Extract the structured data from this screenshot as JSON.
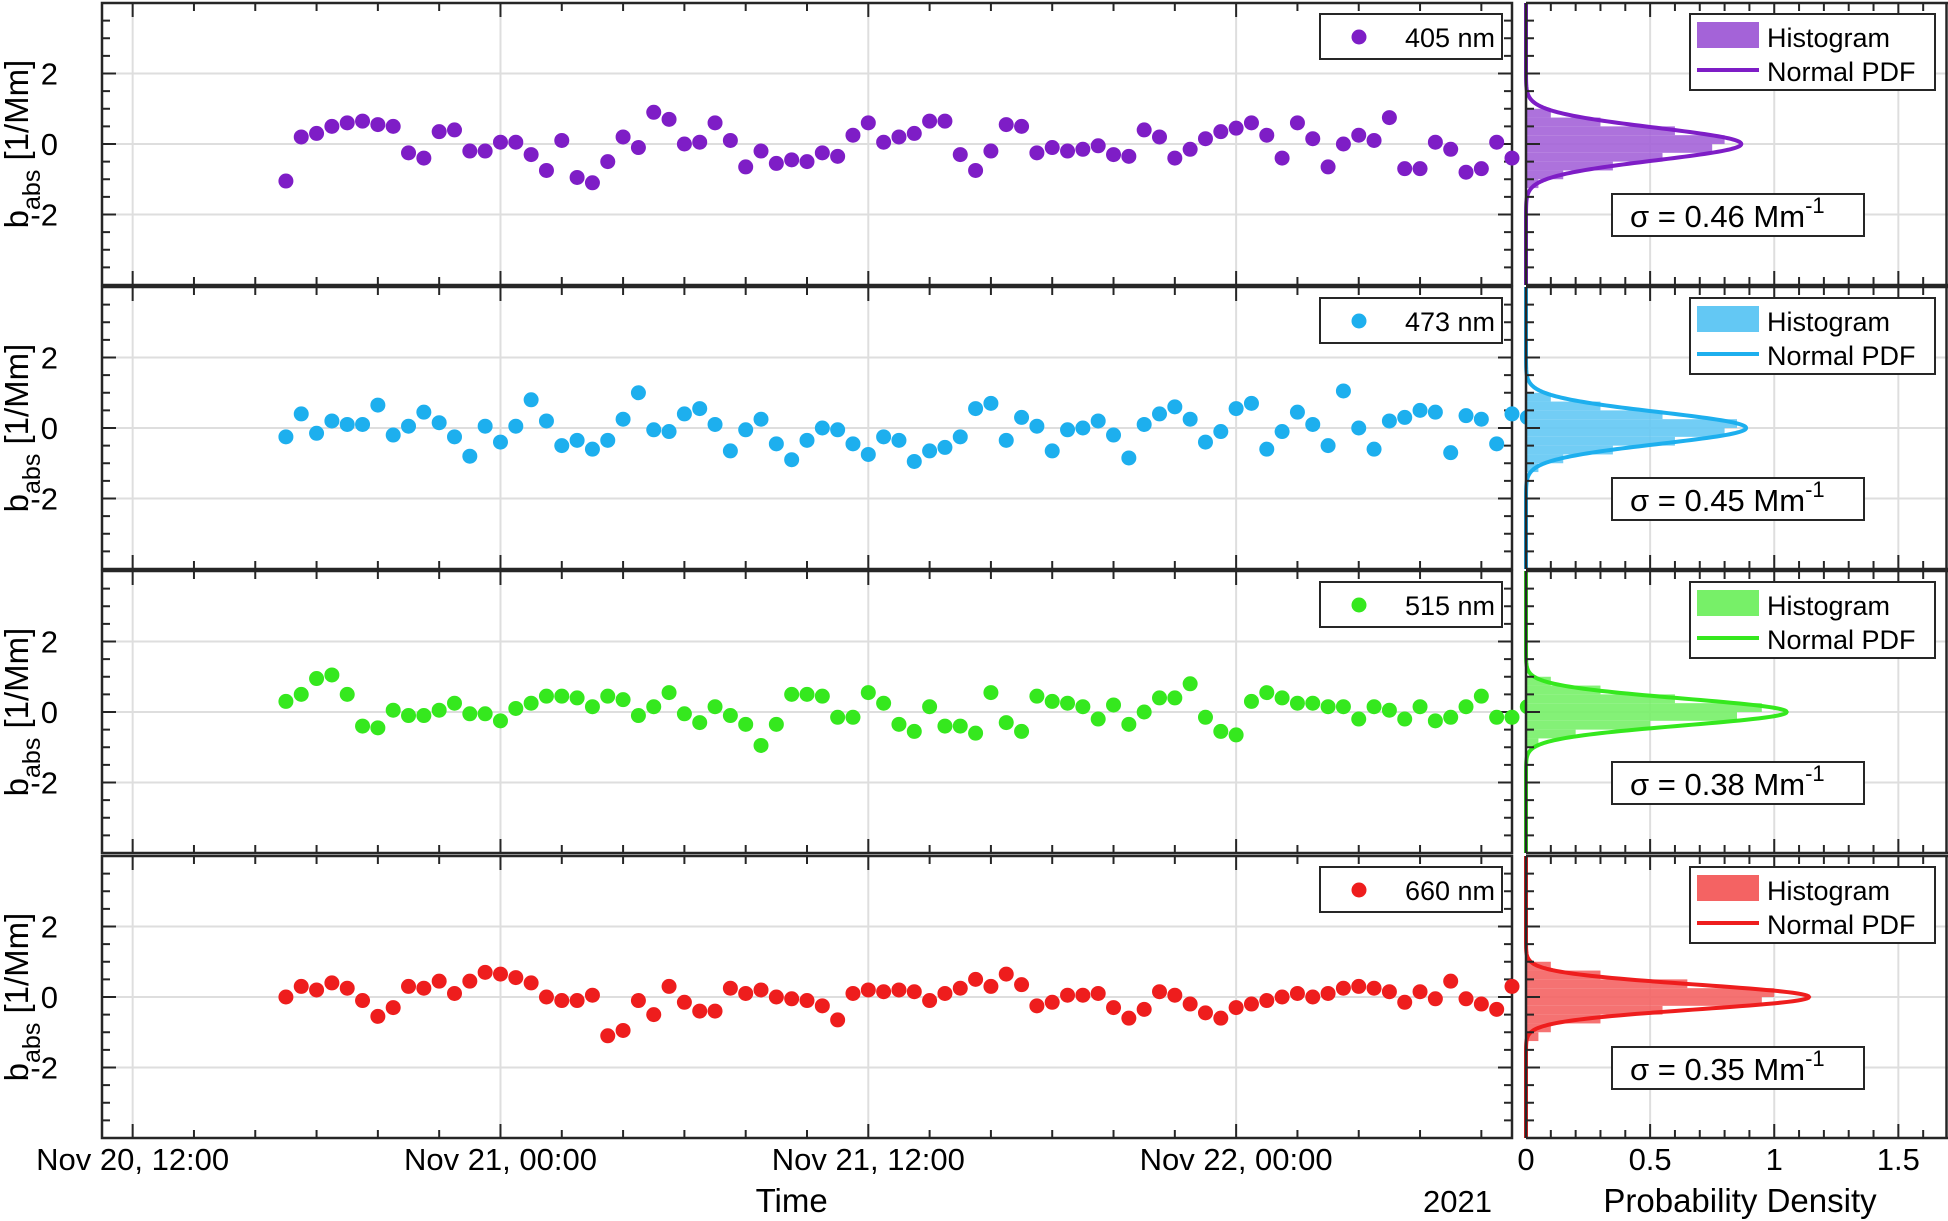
{
  "chart_data": {
    "type": "scatter",
    "x_axis": {
      "label": "Time",
      "tick_labels": [
        "Nov 20, 12:00",
        "Nov 21, 00:00",
        "Nov 21, 12:00",
        "Nov 22, 00:00"
      ],
      "year_label": "2021",
      "range_hours": [
        -1,
        45
      ]
    },
    "y_axis": {
      "label_main": "b",
      "label_sub": "abs",
      "label_unit": " [1/Mm]",
      "tick_labels": [
        "2",
        "0",
        "-2"
      ],
      "ylim": [
        -4,
        4
      ]
    },
    "hist_x_axis": {
      "label": "Probability Density",
      "tick_labels": [
        "0",
        "0.5",
        "1",
        "1.5"
      ],
      "xlim": [
        0,
        1.7
      ]
    },
    "legend_labels": {
      "histogram": "Histogram",
      "pdf": "Normal PDF"
    },
    "grid": true,
    "panels": [
      {
        "name": "405 nm",
        "color": "#7E1DC6",
        "hist_fill": "#A463D8",
        "sigma": 0.46,
        "sigma_label": "σ = 0.46 Mm",
        "sigma_sup": "-1",
        "x_start": 5,
        "x_step": 0.5,
        "values": [
          -1.05,
          0.2,
          0.3,
          0.5,
          0.6,
          0.65,
          0.55,
          0.5,
          -0.25,
          -0.4,
          0.35,
          0.4,
          -0.2,
          -0.2,
          0.05,
          0.05,
          -0.3,
          -0.75,
          0.1,
          -0.95,
          -1.1,
          -0.5,
          0.2,
          -0.1,
          0.9,
          0.7,
          0.0,
          0.05,
          0.6,
          0.1,
          -0.65,
          -0.2,
          -0.55,
          -0.45,
          -0.5,
          -0.25,
          -0.35,
          0.25,
          0.6,
          0.05,
          0.2,
          0.3,
          0.65,
          0.65,
          -0.3,
          -0.75,
          -0.2,
          0.55,
          0.5,
          -0.25,
          -0.1,
          -0.2,
          -0.15,
          -0.05,
          -0.3,
          -0.35,
          0.4,
          0.2,
          -0.4,
          -0.15,
          0.15,
          0.35,
          0.45,
          0.6,
          0.25,
          -0.4,
          0.6,
          0.15,
          -0.65,
          0.0,
          0.25,
          0.1,
          0.75,
          -0.7,
          -0.7,
          0.05,
          -0.15,
          -0.8,
          -0.7,
          0.05,
          -0.4
        ],
        "hist_bins": [
          [
            -1.25,
            -1.0,
            0.05
          ],
          [
            -1.0,
            -0.75,
            0.15
          ],
          [
            -0.75,
            -0.5,
            0.35
          ],
          [
            -0.5,
            -0.25,
            0.55
          ],
          [
            -0.25,
            0.0,
            0.75
          ],
          [
            0.0,
            0.25,
            0.8
          ],
          [
            0.25,
            0.5,
            0.6
          ],
          [
            0.5,
            0.75,
            0.3
          ],
          [
            0.75,
            1.0,
            0.1
          ]
        ]
      },
      {
        "name": "473 nm",
        "color": "#1DAFEE",
        "hist_fill": "#63C8F4",
        "sigma": 0.45,
        "sigma_label": "σ = 0.45 Mm",
        "sigma_sup": "-1",
        "x_start": 5,
        "x_step": 0.5,
        "values": [
          -0.25,
          0.4,
          -0.15,
          0.2,
          0.1,
          0.1,
          0.65,
          -0.2,
          0.05,
          0.45,
          0.15,
          -0.25,
          -0.8,
          0.05,
          -0.4,
          0.05,
          0.8,
          0.2,
          -0.5,
          -0.35,
          -0.6,
          -0.35,
          0.25,
          1.0,
          -0.05,
          -0.1,
          0.4,
          0.55,
          0.1,
          -0.65,
          -0.05,
          0.25,
          -0.45,
          -0.9,
          -0.35,
          0.0,
          -0.05,
          -0.45,
          -0.75,
          -0.25,
          -0.35,
          -0.95,
          -0.65,
          -0.55,
          -0.25,
          0.55,
          0.7,
          -0.35,
          0.3,
          0.05,
          -0.65,
          -0.05,
          0.0,
          0.2,
          -0.2,
          -0.85,
          0.1,
          0.4,
          0.6,
          0.25,
          -0.4,
          -0.1,
          0.55,
          0.7,
          -0.6,
          -0.1,
          0.45,
          0.1,
          -0.5,
          1.05,
          0.0,
          -0.6,
          0.2,
          0.3,
          0.5,
          0.45,
          -0.7,
          0.35,
          0.25,
          -0.45,
          0.4,
          0.3
        ],
        "hist_bins": [
          [
            -1.25,
            -1.0,
            0.05
          ],
          [
            -1.0,
            -0.75,
            0.15
          ],
          [
            -0.75,
            -0.5,
            0.35
          ],
          [
            -0.5,
            -0.25,
            0.6
          ],
          [
            -0.25,
            0.0,
            0.8
          ],
          [
            0.0,
            0.25,
            0.85
          ],
          [
            0.25,
            0.5,
            0.55
          ],
          [
            0.5,
            0.75,
            0.3
          ],
          [
            0.75,
            1.0,
            0.1
          ]
        ]
      },
      {
        "name": "515 nm",
        "color": "#35E81E",
        "hist_fill": "#77F068",
        "sigma": 0.38,
        "sigma_label": "σ = 0.38 Mm",
        "sigma_sup": "-1",
        "x_start": 5,
        "x_step": 0.5,
        "values": [
          0.3,
          0.5,
          0.95,
          1.05,
          0.5,
          -0.4,
          -0.45,
          0.05,
          -0.1,
          -0.1,
          0.05,
          0.25,
          -0.05,
          -0.05,
          -0.25,
          0.1,
          0.25,
          0.45,
          0.45,
          0.4,
          0.15,
          0.45,
          0.35,
          -0.1,
          0.15,
          0.55,
          -0.05,
          -0.3,
          0.15,
          -0.1,
          -0.35,
          -0.95,
          -0.35,
          0.5,
          0.5,
          0.45,
          -0.15,
          -0.15,
          0.55,
          0.25,
          -0.35,
          -0.55,
          0.15,
          -0.4,
          -0.4,
          -0.6,
          0.55,
          -0.3,
          -0.55,
          0.45,
          0.3,
          0.25,
          0.15,
          -0.2,
          0.2,
          -0.35,
          0.0,
          0.4,
          0.4,
          0.8,
          -0.15,
          -0.55,
          -0.65,
          0.3,
          0.55,
          0.4,
          0.25,
          0.25,
          0.15,
          0.15,
          -0.2,
          0.15,
          0.05,
          -0.2,
          0.15,
          -0.25,
          -0.15,
          0.15,
          0.45,
          -0.15,
          -0.15,
          0.15
        ],
        "hist_bins": [
          [
            -1.0,
            -0.75,
            0.05
          ],
          [
            -0.75,
            -0.5,
            0.2
          ],
          [
            -0.5,
            -0.25,
            0.5
          ],
          [
            -0.25,
            0.0,
            0.85
          ],
          [
            0.0,
            0.25,
            0.95
          ],
          [
            0.25,
            0.5,
            0.6
          ],
          [
            0.5,
            0.75,
            0.3
          ],
          [
            0.75,
            1.0,
            0.1
          ]
        ]
      },
      {
        "name": "660 nm",
        "color": "#EE1D1D",
        "hist_fill": "#F46363",
        "sigma": 0.35,
        "sigma_label": "σ = 0.35 Mm",
        "sigma_sup": "-1",
        "x_start": 5,
        "x_step": 0.5,
        "values": [
          0.0,
          0.3,
          0.2,
          0.4,
          0.25,
          -0.1,
          -0.55,
          -0.3,
          0.3,
          0.25,
          0.45,
          0.1,
          0.45,
          0.7,
          0.65,
          0.55,
          0.4,
          0.0,
          -0.1,
          -0.1,
          0.05,
          -1.1,
          -0.95,
          -0.1,
          -0.5,
          0.3,
          -0.15,
          -0.4,
          -0.4,
          0.25,
          0.1,
          0.2,
          0.0,
          -0.05,
          -0.1,
          -0.25,
          -0.65,
          0.1,
          0.2,
          0.15,
          0.2,
          0.15,
          -0.1,
          0.1,
          0.25,
          0.5,
          0.3,
          0.65,
          0.35,
          -0.25,
          -0.15,
          0.05,
          0.05,
          0.1,
          -0.3,
          -0.6,
          -0.35,
          0.15,
          0.05,
          -0.2,
          -0.45,
          -0.6,
          -0.3,
          -0.2,
          -0.1,
          0.0,
          0.1,
          0.0,
          0.1,
          0.25,
          0.3,
          0.25,
          0.15,
          -0.15,
          0.15,
          -0.05,
          0.45,
          -0.05,
          -0.2,
          -0.35,
          0.3
        ],
        "hist_bins": [
          [
            -1.25,
            -1.0,
            0.05
          ],
          [
            -1.0,
            -0.75,
            0.1
          ],
          [
            -0.75,
            -0.5,
            0.3
          ],
          [
            -0.5,
            -0.25,
            0.55
          ],
          [
            -0.25,
            0.0,
            0.95
          ],
          [
            0.0,
            0.25,
            1.0
          ],
          [
            0.25,
            0.5,
            0.65
          ],
          [
            0.5,
            0.75,
            0.3
          ],
          [
            0.75,
            1.0,
            0.1
          ]
        ]
      }
    ]
  }
}
